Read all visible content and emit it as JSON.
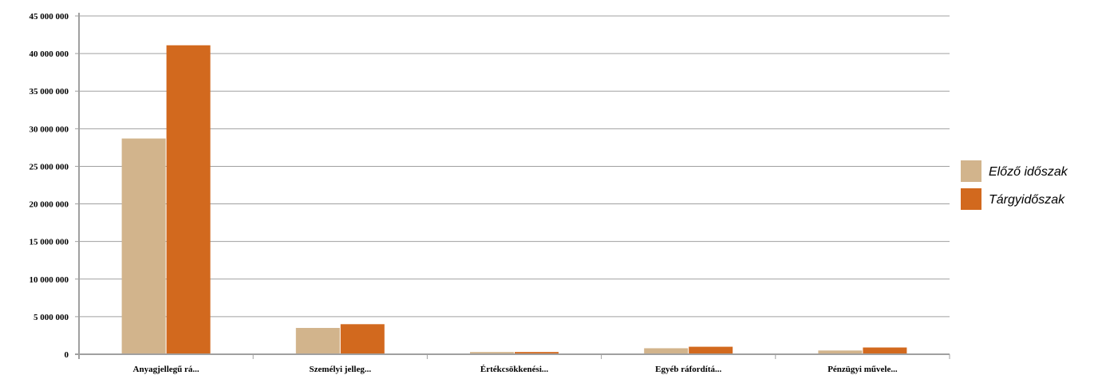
{
  "chart_data": {
    "type": "bar",
    "title": "",
    "xlabel": "",
    "ylabel": "",
    "categories": [
      "Anyagjellegű rá...",
      "Személyi jelleg...",
      "Értékcsökkenési...",
      "Egyéb ráfordítá...",
      "Pénzügyi művele..."
    ],
    "series": [
      {
        "name": "Előző időszak",
        "color": "#d2b48c",
        "values": [
          28700000,
          3500000,
          300000,
          800000,
          500000
        ]
      },
      {
        "name": "Tárgyidőszak",
        "color": "#d2691e",
        "values": [
          41100000,
          4000000,
          300000,
          1000000,
          900000
        ]
      }
    ],
    "ylim": [
      0,
      45000000
    ],
    "yticks": [
      0,
      5000000,
      10000000,
      15000000,
      20000000,
      25000000,
      30000000,
      35000000,
      40000000,
      45000000
    ],
    "ytick_labels": [
      "0",
      "5 000 000",
      "10 000 000",
      "15 000 000",
      "20 000 000",
      "25 000 000",
      "30 000 000",
      "35 000 000",
      "40 000 000",
      "45 000 000"
    ],
    "grid": true,
    "legend_position": "right"
  }
}
